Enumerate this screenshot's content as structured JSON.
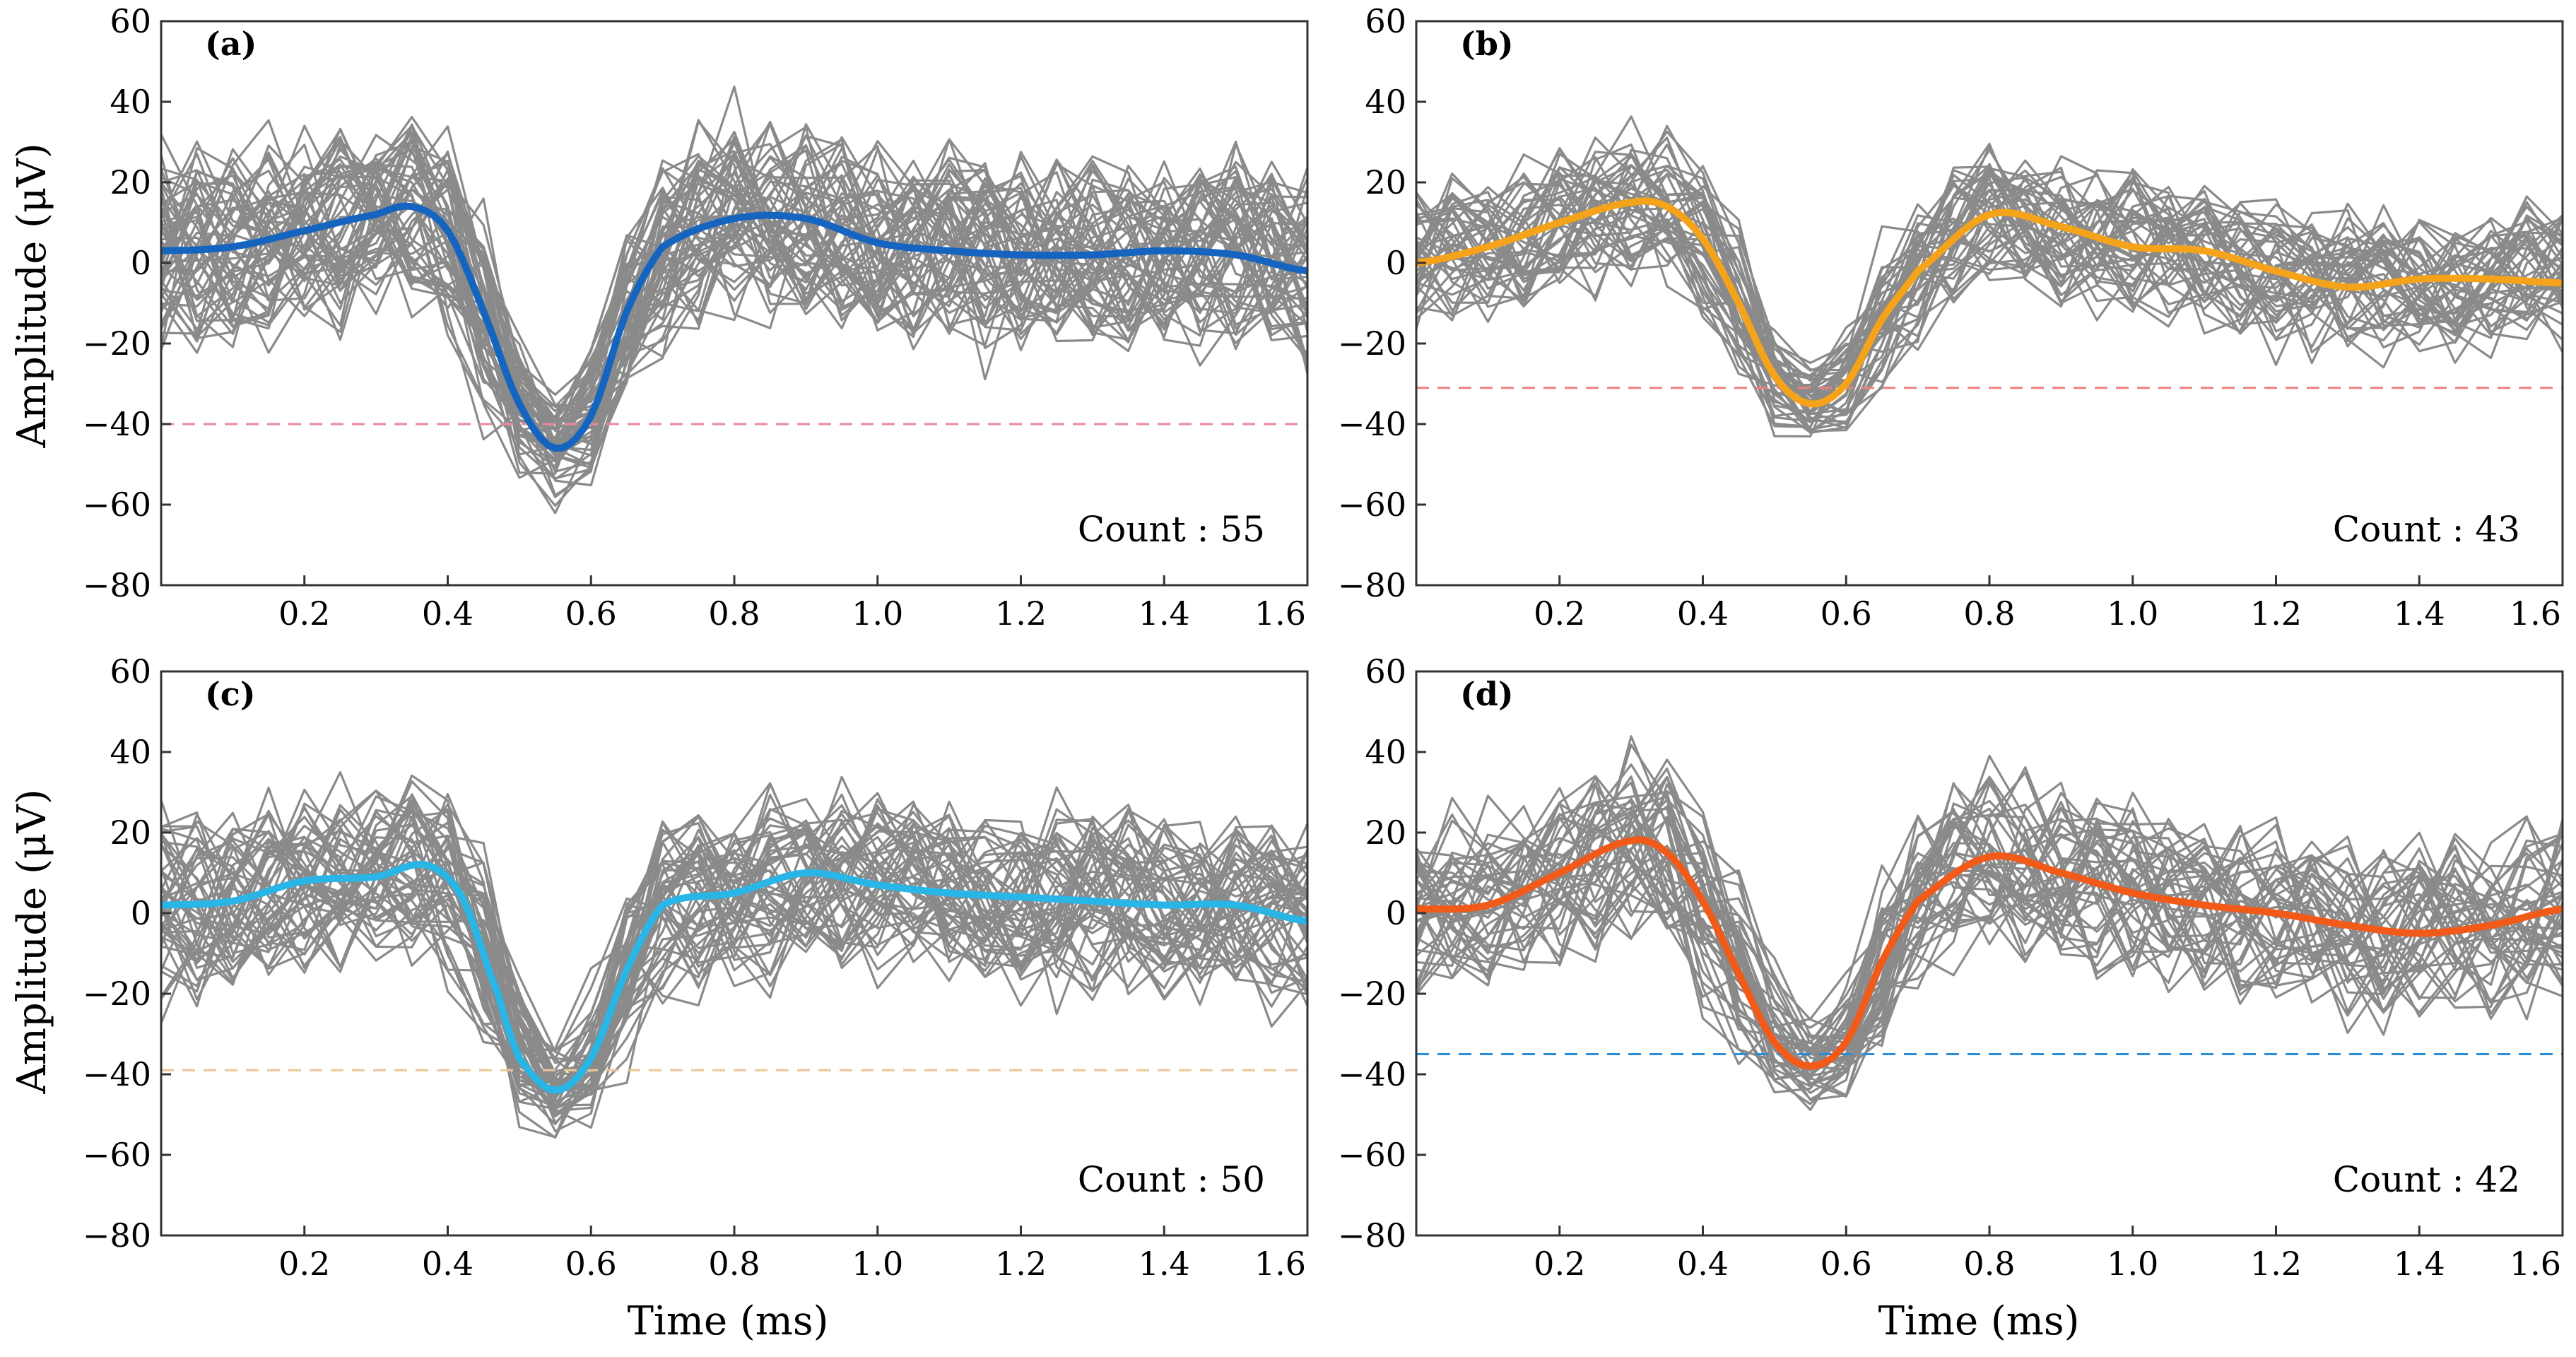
{
  "figure": {
    "xlabel": "Time (ms)",
    "ylabel": "Amplitude (μV)"
  },
  "colors": {
    "trace": "#8a8a8a",
    "mean_a": "#1565c0",
    "mean_b": "#f5a31a",
    "mean_c": "#29b6e6",
    "mean_d": "#f25a1a",
    "thresh_a": "#e98a9a",
    "thresh_b": "#ee7f7f",
    "thresh_c": "#efc49a",
    "thresh_d": "#2a8fd6"
  },
  "chart_data": [
    {
      "type": "line",
      "label": "(a)",
      "count_text": "Count : 55",
      "xlim": [
        0,
        1.6
      ],
      "ylim": [
        -80,
        60
      ],
      "xticks": [
        0.2,
        0.4,
        0.6,
        0.8,
        1.0,
        1.2,
        1.4,
        1.6
      ],
      "xtick_labels": [
        "0.2",
        "0.4",
        "0.6",
        "0.8",
        "1.0",
        "1.2",
        "1.4",
        "1.6"
      ],
      "yticks": [
        60,
        40,
        20,
        0,
        -20,
        -40,
        -60,
        -80
      ],
      "ytick_labels": [
        "60",
        "40",
        "20",
        "0",
        "−20",
        "−40",
        "−60",
        "−80"
      ],
      "threshold": -40,
      "trace_count": 55,
      "noise_amplitude": 16,
      "mean_series": {
        "x": [
          0,
          0.1,
          0.2,
          0.3,
          0.35,
          0.4,
          0.45,
          0.5,
          0.55,
          0.6,
          0.65,
          0.7,
          0.8,
          0.9,
          1.0,
          1.1,
          1.2,
          1.3,
          1.4,
          1.5,
          1.6
        ],
        "y": [
          3,
          4,
          8,
          12,
          14,
          8,
          -12,
          -35,
          -46,
          -38,
          -12,
          4,
          11,
          11,
          5,
          3,
          2,
          2,
          3,
          2,
          -2
        ]
      }
    },
    {
      "type": "line",
      "label": "(b)",
      "count_text": "Count : 43",
      "xlim": [
        0,
        1.6
      ],
      "ylim": [
        -80,
        60
      ],
      "xticks": [
        0.2,
        0.4,
        0.6,
        0.8,
        1.0,
        1.2,
        1.4,
        1.6
      ],
      "xtick_labels": [
        "0.2",
        "0.4",
        "0.6",
        "0.8",
        "1.0",
        "1.2",
        "1.4",
        "1.6"
      ],
      "yticks": [
        60,
        40,
        20,
        0,
        -20,
        -40,
        -60,
        -80
      ],
      "ytick_labels": [
        "60",
        "40",
        "20",
        "0",
        "−20",
        "−40",
        "−60",
        "−80"
      ],
      "threshold": -31,
      "trace_count": 43,
      "noise_amplitude": 12,
      "mean_series": {
        "x": [
          0,
          0.1,
          0.2,
          0.3,
          0.35,
          0.4,
          0.45,
          0.5,
          0.55,
          0.6,
          0.65,
          0.7,
          0.8,
          0.9,
          1.0,
          1.1,
          1.2,
          1.3,
          1.4,
          1.5,
          1.6
        ],
        "y": [
          0,
          4,
          10,
          15,
          14,
          6,
          -10,
          -28,
          -35,
          -30,
          -14,
          -2,
          12,
          9,
          4,
          3,
          -2,
          -6,
          -4,
          -4,
          -5
        ]
      }
    },
    {
      "type": "line",
      "label": "(c)",
      "count_text": "Count : 50",
      "xlim": [
        0,
        1.6
      ],
      "ylim": [
        -80,
        60
      ],
      "xticks": [
        0.2,
        0.4,
        0.6,
        0.8,
        1.0,
        1.2,
        1.4,
        1.6
      ],
      "xtick_labels": [
        "0.2",
        "0.4",
        "0.6",
        "0.8",
        "1.0",
        "1.2",
        "1.4",
        "1.6"
      ],
      "yticks": [
        60,
        40,
        20,
        0,
        -20,
        -40,
        -60,
        -80
      ],
      "ytick_labels": [
        "60",
        "40",
        "20",
        "0",
        "−20",
        "−40",
        "−60",
        "−80"
      ],
      "threshold": -39,
      "trace_count": 50,
      "noise_amplitude": 15,
      "mean_series": {
        "x": [
          0,
          0.1,
          0.2,
          0.3,
          0.37,
          0.42,
          0.47,
          0.5,
          0.55,
          0.6,
          0.65,
          0.7,
          0.8,
          0.9,
          1.0,
          1.1,
          1.2,
          1.3,
          1.4,
          1.5,
          1.6
        ],
        "y": [
          2,
          3,
          8,
          9,
          12,
          4,
          -20,
          -36,
          -44,
          -36,
          -14,
          2,
          5,
          10,
          7,
          5,
          4,
          3,
          2,
          2,
          -2
        ]
      }
    },
    {
      "type": "line",
      "label": "(d)",
      "count_text": "Count : 42",
      "xlim": [
        0,
        1.6
      ],
      "ylim": [
        -80,
        60
      ],
      "xticks": [
        0.2,
        0.4,
        0.6,
        0.8,
        1.0,
        1.2,
        1.4,
        1.6
      ],
      "xtick_labels": [
        "0.2",
        "0.4",
        "0.6",
        "0.8",
        "1.0",
        "1.2",
        "1.4",
        "1.6"
      ],
      "yticks": [
        60,
        40,
        20,
        0,
        -20,
        -40,
        -60,
        -80
      ],
      "ytick_labels": [
        "60",
        "40",
        "20",
        "0",
        "−20",
        "−40",
        "−60",
        "−80"
      ],
      "threshold": -35,
      "trace_count": 42,
      "noise_amplitude": 15,
      "mean_series": {
        "x": [
          0,
          0.1,
          0.2,
          0.3,
          0.35,
          0.4,
          0.45,
          0.5,
          0.55,
          0.6,
          0.65,
          0.7,
          0.8,
          0.9,
          1.0,
          1.1,
          1.2,
          1.3,
          1.4,
          1.5,
          1.6
        ],
        "y": [
          1,
          2,
          10,
          18,
          15,
          3,
          -15,
          -32,
          -38,
          -32,
          -12,
          3,
          14,
          10,
          5,
          2,
          0,
          -3,
          -5,
          -3,
          1
        ]
      }
    }
  ]
}
